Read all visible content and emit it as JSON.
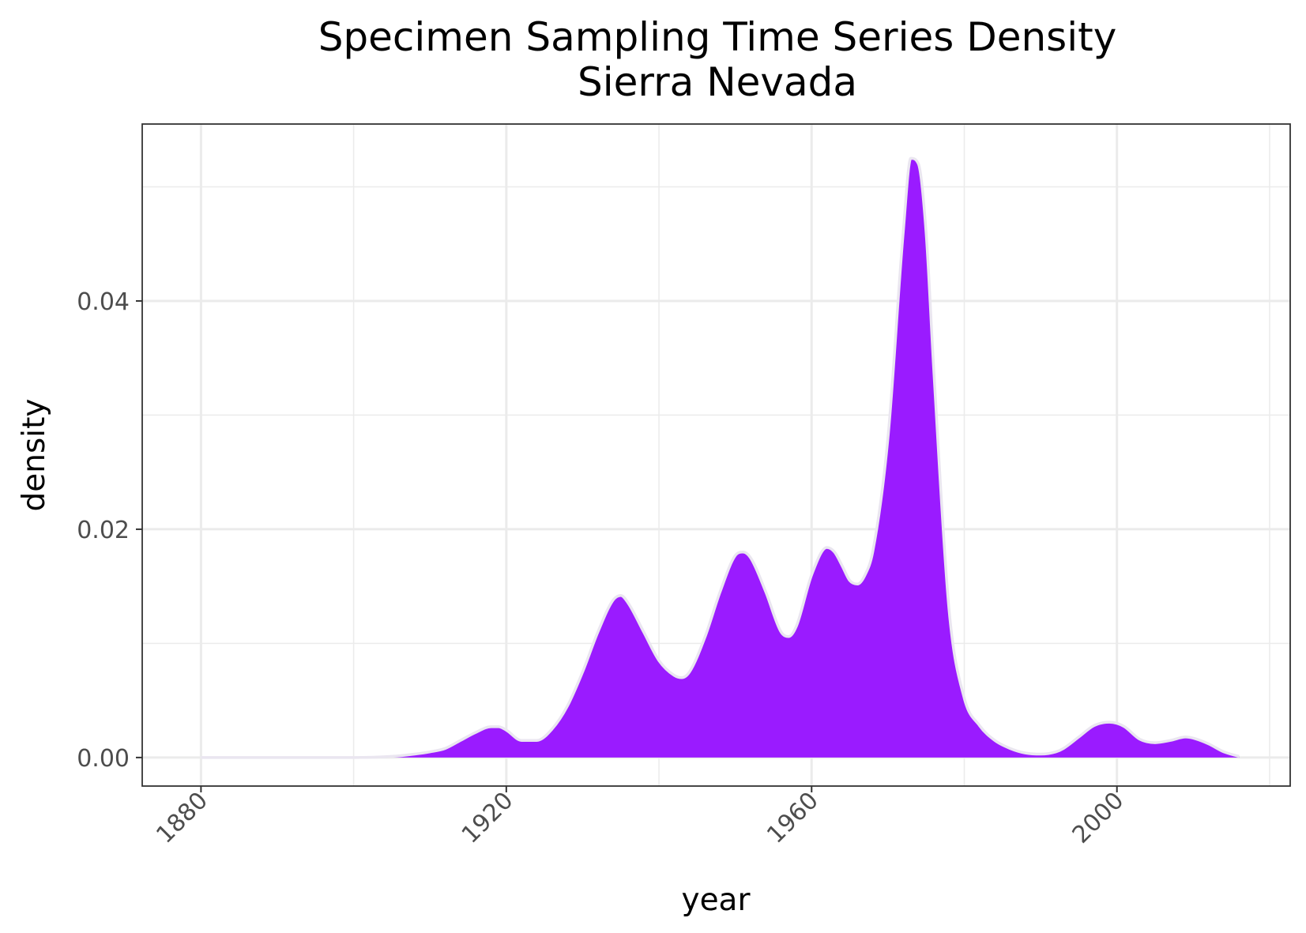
{
  "chart_data": {
    "type": "area",
    "title": "Specimen Sampling Time Series Density",
    "subtitle": "Sierra Nevada",
    "xlabel": "year",
    "ylabel": "density",
    "xlim": [
      1872.3,
      2022.7
    ],
    "ylim": [
      -0.0025,
      0.0555
    ],
    "x_ticks": [
      1880,
      1920,
      1960,
      2000
    ],
    "x_tick_labels": [
      "1880",
      "1920",
      "1960",
      "2000"
    ],
    "y_ticks": [
      0.0,
      0.02,
      0.04
    ],
    "y_tick_labels": [
      "0.00",
      "0.02",
      "0.04"
    ],
    "grid": true,
    "fill_color": "#9a1bff",
    "outline_color": "#eae6f0",
    "series": [
      {
        "x": [
          1880,
          1890,
          1900,
          1905,
          1908,
          1910,
          1912,
          1914,
          1916,
          1918,
          1919,
          1920,
          1922,
          1924,
          1926,
          1928,
          1930,
          1932,
          1934,
          1935,
          1936,
          1938,
          1940,
          1942,
          1943,
          1944,
          1946,
          1948,
          1950,
          1951,
          1952,
          1954,
          1956,
          1957,
          1958,
          1960,
          1962,
          1963,
          1964,
          1965,
          1966,
          1967,
          1968,
          1970,
          1972,
          1973,
          1974,
          1975,
          1976,
          1978,
          1980,
          1982,
          1984,
          1986,
          1988,
          1990,
          1992,
          1993,
          1995,
          1997,
          1999,
          2000,
          2001,
          2003,
          2005,
          2007,
          2009,
          2010,
          2012,
          2014,
          2016
        ],
        "y": [
          0.0,
          0.0,
          0.0,
          0.0001,
          0.0003,
          0.0005,
          0.0008,
          0.0015,
          0.0022,
          0.0027,
          0.0027,
          0.0024,
          0.0015,
          0.0015,
          0.0025,
          0.0045,
          0.0075,
          0.011,
          0.0138,
          0.0142,
          0.0135,
          0.011,
          0.0085,
          0.0072,
          0.007,
          0.0075,
          0.0105,
          0.0145,
          0.0177,
          0.018,
          0.0175,
          0.0145,
          0.011,
          0.0106,
          0.0115,
          0.016,
          0.0184,
          0.018,
          0.0168,
          0.0155,
          0.0152,
          0.016,
          0.018,
          0.028,
          0.046,
          0.0525,
          0.052,
          0.046,
          0.034,
          0.013,
          0.0052,
          0.0028,
          0.0015,
          0.0008,
          0.0004,
          0.0003,
          0.0005,
          0.0008,
          0.0018,
          0.0028,
          0.0031,
          0.003,
          0.0027,
          0.0016,
          0.0013,
          0.0015,
          0.0018,
          0.0017,
          0.0012,
          0.0005,
          0.0001
        ]
      }
    ]
  }
}
